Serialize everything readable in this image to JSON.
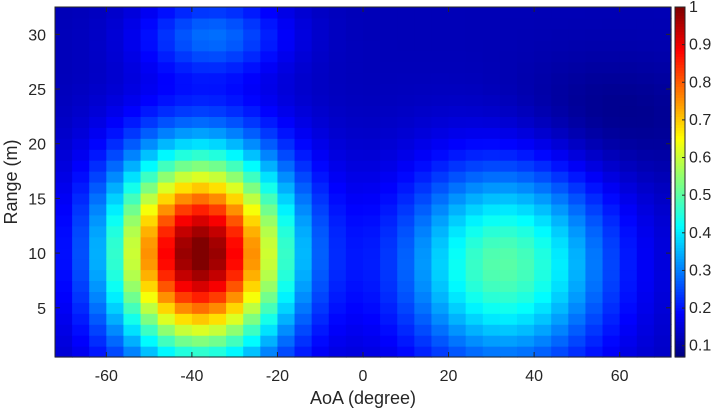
{
  "chart_data": {
    "type": "heatmap",
    "title": "",
    "xlabel": "AoA (degree)",
    "ylabel": "Range (m)",
    "xlim": [
      -72,
      72
    ],
    "ylim": [
      0.5,
      32.5
    ],
    "x_ticks": [
      -60,
      -40,
      -20,
      0,
      20,
      40,
      60
    ],
    "y_ticks": [
      5,
      10,
      15,
      20,
      25,
      30
    ],
    "x_tick_labels": [
      "-60",
      "-40",
      "-20",
      "0",
      "20",
      "40",
      "60"
    ],
    "y_tick_labels": [
      "5",
      "10",
      "15",
      "20",
      "25",
      "30"
    ],
    "colorbar": {
      "colormap": "jet",
      "clim": [
        0.07,
        1.0
      ],
      "ticks": [
        0.1,
        0.2,
        0.3,
        0.4,
        0.5,
        0.6,
        0.7,
        0.8,
        0.9,
        1
      ],
      "tick_labels": [
        "0.1",
        "0.2",
        "0.3",
        "0.4",
        "0.5",
        "0.6",
        "0.7",
        "0.8",
        "0.9",
        "1"
      ]
    },
    "grid_x": {
      "start": -70,
      "step": 4,
      "count": 36
    },
    "grid_y": {
      "start": 1,
      "step": 1,
      "count": 32
    },
    "field_model": {
      "description": "Normalized intensity over AoA x Range built from Gaussian components plus base level, clipped to clim.",
      "base": 0.12,
      "components": [
        {
          "amplitude": 0.89,
          "aoa_center": -38,
          "range_center": 10,
          "aoa_sigma": 14.5,
          "range_sigma": 6.5
        },
        {
          "amplitude": 0.38,
          "aoa_center": 33,
          "range_center": 9,
          "aoa_sigma": 17,
          "range_sigma": 6.5
        },
        {
          "amplitude": 0.16,
          "aoa_center": -35,
          "range_center": 30,
          "aoa_sigma": 12,
          "range_sigma": 2.5
        },
        {
          "amplitude": -0.05,
          "aoa_center": 55,
          "range_center": 22,
          "aoa_sigma": 18,
          "range_sigma": 4
        }
      ]
    }
  }
}
